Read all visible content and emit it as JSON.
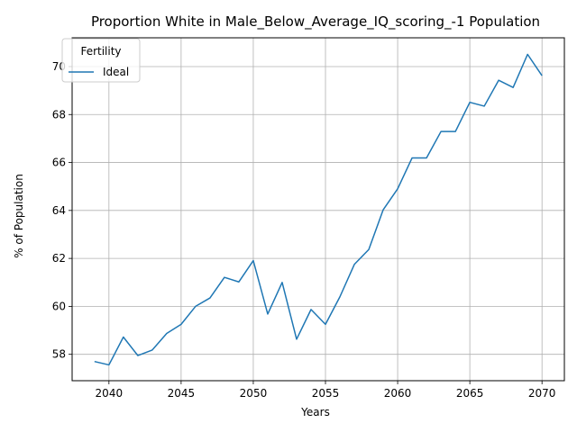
{
  "chart_data": {
    "type": "line",
    "title": "Proportion White in Male_Below_Average_IQ_scoring_-1 Population",
    "xlabel": "Years",
    "ylabel": "% of Population",
    "xlim": [
      2037.45,
      2071.55
    ],
    "ylim": [
      56.9,
      71.2
    ],
    "xticks": [
      2040,
      2045,
      2050,
      2055,
      2060,
      2065,
      2070
    ],
    "yticks": [
      58,
      60,
      62,
      64,
      66,
      68,
      70
    ],
    "grid": true,
    "legend": {
      "title": "Fertility",
      "placement": "top-left"
    },
    "series": [
      {
        "name": "Ideal",
        "color": "#1f77b4",
        "x": [
          2039,
          2040,
          2041,
          2042,
          2043,
          2044,
          2045,
          2046,
          2047,
          2048,
          2049,
          2050,
          2051,
          2052,
          2053,
          2054,
          2055,
          2056,
          2057,
          2058,
          2059,
          2060,
          2061,
          2062,
          2063,
          2064,
          2065,
          2066,
          2067,
          2068,
          2069,
          2070
        ],
        "y": [
          57.7,
          57.56,
          58.72,
          57.95,
          58.18,
          58.87,
          59.25,
          60.0,
          60.35,
          61.21,
          61.02,
          61.91,
          59.68,
          61.0,
          58.63,
          59.87,
          59.25,
          60.4,
          61.75,
          62.37,
          64.03,
          64.9,
          66.19,
          66.19,
          67.29,
          67.29,
          68.51,
          68.35,
          69.43,
          69.13,
          70.51,
          69.62
        ]
      }
    ]
  }
}
